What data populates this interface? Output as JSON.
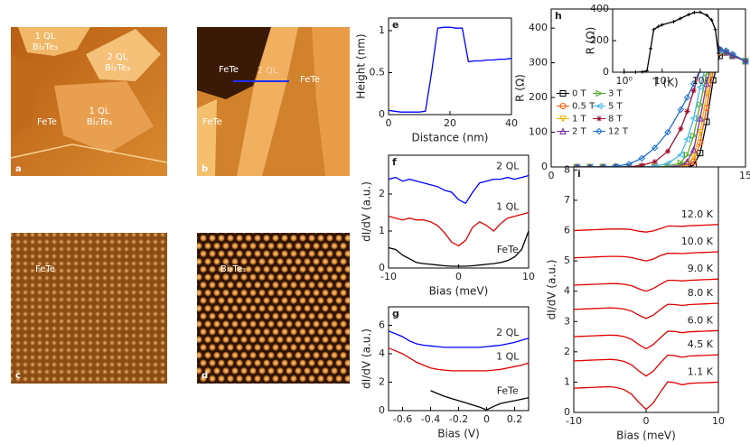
{
  "images": [
    {
      "label": "a",
      "texts": [
        "1 QL",
        "Bi₂Te₃",
        "2 QL",
        "Bi₂Te₃",
        "1 QL",
        "Bi₂Te₃",
        "FeTe"
      ]
    },
    {
      "label": "b",
      "texts": [
        "FeTe",
        "2 QL",
        "FeTe",
        "FeTe"
      ]
    },
    {
      "label": "c",
      "texts": [
        "FeTe"
      ]
    },
    {
      "label": "d",
      "texts": [
        "Bi₂Te₃"
      ]
    }
  ],
  "chart_data": [
    {
      "type": "line",
      "label": "e",
      "xlabel": "Distance (nm)",
      "ylabel": "Height (nm)",
      "x": [
        0,
        2,
        4,
        6,
        8,
        10,
        12,
        14,
        16,
        18,
        20,
        22,
        24,
        26,
        28,
        30,
        32,
        34,
        36,
        38,
        40
      ],
      "series": [
        {
          "color": "#0000ff",
          "values": [
            0.05,
            0.04,
            0.03,
            0.03,
            0.03,
            0.03,
            0.04,
            0.5,
            1.03,
            1.04,
            1.04,
            1.03,
            1.03,
            0.63,
            0.64,
            0.64,
            0.65,
            0.65,
            0.66,
            0.66,
            0.67
          ]
        }
      ],
      "xlim": [
        0,
        40
      ],
      "xticks": [
        0,
        20,
        40
      ],
      "ylim": [
        0,
        1.15
      ],
      "yticks": [
        0,
        0.5,
        1
      ]
    },
    {
      "type": "line",
      "label": "f",
      "xlabel": "Bias (meV)",
      "ylabel": "dI/dV (a.u.)",
      "legend": "inline",
      "x": [
        -10,
        -9,
        -8,
        -7,
        -6,
        -5,
        -4,
        -3,
        -2,
        -1,
        0,
        1,
        2,
        3,
        4,
        5,
        6,
        7,
        8,
        9,
        10
      ],
      "series": [
        {
          "name": "2 QL",
          "color": "#0000ff",
          "values": [
            2.4,
            2.45,
            2.35,
            2.4,
            2.35,
            2.3,
            2.25,
            2.2,
            2.1,
            2.05,
            1.85,
            1.75,
            2.05,
            2.3,
            2.35,
            2.4,
            2.4,
            2.45,
            2.4,
            2.45,
            2.5
          ]
        },
        {
          "name": "1 QL",
          "color": "#e00000",
          "values": [
            1.4,
            1.35,
            1.3,
            1.35,
            1.3,
            1.3,
            1.25,
            1.15,
            0.95,
            0.7,
            0.6,
            0.75,
            1.1,
            1.25,
            1.15,
            1.0,
            1.2,
            1.35,
            1.4,
            1.45,
            1.5
          ]
        },
        {
          "name": "FeTe",
          "color": "#000000",
          "values": [
            0.55,
            0.5,
            0.35,
            0.25,
            0.15,
            0.12,
            0.1,
            0.08,
            0.06,
            0.05,
            0.05,
            0.05,
            0.06,
            0.08,
            0.1,
            0.12,
            0.15,
            0.2,
            0.3,
            0.5,
            1.0
          ]
        }
      ],
      "xlim": [
        -10,
        10
      ],
      "xticks": [
        -10,
        0,
        10
      ],
      "ylim": [
        0,
        3.05
      ],
      "yticks": [
        0,
        1,
        2
      ]
    },
    {
      "type": "line",
      "label": "g",
      "xlabel": "Bias (V)",
      "ylabel": "dI/dV (a.u.)",
      "legend": "inline",
      "x": [
        -0.7,
        -0.65,
        -0.6,
        -0.55,
        -0.5,
        -0.45,
        -0.4,
        -0.35,
        -0.3,
        -0.25,
        -0.2,
        -0.15,
        -0.1,
        -0.05,
        0,
        0.05,
        0.1,
        0.15,
        0.2,
        0.25,
        0.3
      ],
      "series": [
        {
          "name": "2 QL",
          "color": "#0000ff",
          "values": [
            5.6,
            5.4,
            5.2,
            4.9,
            4.7,
            4.6,
            4.55,
            4.5,
            4.45,
            4.45,
            4.45,
            4.45,
            4.45,
            4.45,
            4.5,
            4.55,
            4.6,
            4.7,
            4.8,
            4.95,
            5.1
          ]
        },
        {
          "name": "1 QL",
          "color": "#e00000",
          "values": [
            4.4,
            4.2,
            4.0,
            3.7,
            3.4,
            3.2,
            3.0,
            2.9,
            2.85,
            2.8,
            2.8,
            2.8,
            2.8,
            2.8,
            2.8,
            2.85,
            2.9,
            3.0,
            3.1,
            3.2,
            3.35
          ]
        },
        {
          "name": "FeTe",
          "color": "#000000",
          "values": [
            null,
            null,
            null,
            null,
            null,
            null,
            1.4,
            1.2,
            1.0,
            0.85,
            0.7,
            0.55,
            0.4,
            0.25,
            0.05,
            0.3,
            0.5,
            0.6,
            0.7,
            0.8,
            0.9
          ]
        }
      ],
      "xlim": [
        -0.7,
        0.3
      ],
      "xticks": [
        -0.6,
        -0.4,
        -0.2,
        0,
        0.2
      ],
      "ylim": [
        0,
        7.3
      ],
      "yticks": [
        0,
        2,
        4,
        6
      ]
    },
    {
      "type": "line",
      "label": "h",
      "xlabel": "T (K)",
      "ylabel": "R (Ω)",
      "legend": "center left",
      "x": [
        2,
        3,
        4,
        5,
        6,
        7,
        8,
        9,
        10,
        10.5,
        11,
        11.5,
        12,
        12.5,
        13,
        13.5,
        14,
        15
      ],
      "series": [
        {
          "name": "0 T",
          "color": "#000000",
          "marker": "s",
          "values": [
            0,
            0,
            0,
            0,
            0,
            0,
            0,
            0,
            0,
            0,
            5,
            40,
            130,
            250,
            320,
            330,
            320,
            305
          ]
        },
        {
          "name": "0.5 T",
          "color": "#ff5500",
          "marker": "o",
          "values": [
            0,
            0,
            0,
            0,
            0,
            0,
            0,
            0,
            0,
            2,
            15,
            70,
            170,
            280,
            330,
            330,
            320,
            305
          ]
        },
        {
          "name": "1 T",
          "color": "#e8b000",
          "marker": "v",
          "values": [
            0,
            0,
            0,
            0,
            0,
            0,
            0,
            0,
            2,
            8,
            30,
            100,
            210,
            300,
            335,
            330,
            320,
            305
          ]
        },
        {
          "name": "2 T",
          "color": "#7b2fa0",
          "marker": "^",
          "values": [
            0,
            0,
            0,
            0,
            0,
            0,
            0,
            0,
            5,
            15,
            50,
            140,
            240,
            310,
            335,
            330,
            320,
            305
          ]
        },
        {
          "name": "3 T",
          "color": "#5aaa30",
          "marker": ">",
          "values": [
            0,
            0,
            0,
            0,
            0,
            0,
            0,
            2,
            12,
            35,
            90,
            180,
            270,
            320,
            335,
            330,
            320,
            305
          ]
        },
        {
          "name": "5 T",
          "color": "#40b8e8",
          "marker": "<",
          "values": [
            0,
            0,
            0,
            0,
            0,
            0,
            2,
            10,
            35,
            80,
            140,
            230,
            300,
            330,
            335,
            330,
            320,
            305
          ]
        },
        {
          "name": "8 T",
          "color": "#a01030",
          "marker": "*",
          "values": [
            0,
            0,
            0,
            0,
            0,
            5,
            15,
            45,
            110,
            160,
            220,
            280,
            320,
            340,
            340,
            330,
            320,
            305
          ]
        },
        {
          "name": "12 T",
          "color": "#1f6fd0",
          "marker": "D",
          "values": [
            0,
            0,
            0,
            2,
            8,
            25,
            55,
            100,
            165,
            200,
            240,
            280,
            315,
            335,
            340,
            335,
            325,
            305
          ]
        }
      ],
      "xlim": [
        0,
        15
      ],
      "xticks": [
        0,
        5,
        10,
        15
      ],
      "ylim": [
        0,
        455
      ],
      "yticks": [
        0,
        100,
        200,
        300,
        400
      ]
    },
    {
      "type": "line",
      "xlabel": "T (K)",
      "ylabel": "R (Ω)",
      "xscale": "log",
      "x": [
        1,
        2,
        3,
        4,
        5,
        6,
        8,
        10,
        20,
        30,
        50,
        70,
        100,
        150,
        200,
        250,
        300
      ],
      "series": [
        {
          "color": "#000000",
          "marker": "+",
          "values": [
            0,
            0,
            2,
            10,
            150,
            270,
            290,
            300,
            320,
            340,
            365,
            378,
            380,
            360,
            330,
            270,
            120
          ]
        }
      ],
      "xlim": [
        0.5,
        300
      ],
      "xticks": [
        {
          "value": 1,
          "label": "10⁰"
        },
        {
          "value": 10,
          "label": "10¹"
        },
        {
          "value": 100,
          "label": "10²"
        }
      ],
      "ylim": [
        0,
        400
      ],
      "yticks": [
        0,
        200,
        400
      ]
    },
    {
      "type": "line",
      "label": "i",
      "xlabel": "Bias (meV)",
      "ylabel": "dI/dV (a.u.)",
      "legend": "inline-right",
      "x": [
        -10,
        -9,
        -8,
        -7,
        -6,
        -5,
        -4,
        -3,
        -2,
        -1,
        0,
        1,
        2,
        3,
        4,
        5,
        6,
        7,
        8,
        9,
        10
      ],
      "series": [
        {
          "name": "12.0 K",
          "color": "#e00000",
          "values": [
            6.0,
            6.01,
            6.02,
            6.03,
            6.04,
            6.05,
            6.05,
            6.05,
            6.03,
            5.98,
            5.95,
            5.99,
            6.07,
            6.15,
            6.15,
            6.14,
            6.16,
            6.17,
            6.18,
            6.19,
            6.2
          ]
        },
        {
          "name": "10.0 K",
          "color": "#e00000",
          "values": [
            5.1,
            5.11,
            5.12,
            5.13,
            5.14,
            5.15,
            5.15,
            5.14,
            5.11,
            5.05,
            5.0,
            5.06,
            5.18,
            5.25,
            5.25,
            5.24,
            5.26,
            5.27,
            5.28,
            5.29,
            5.3
          ]
        },
        {
          "name": "9.0 K",
          "color": "#e00000",
          "values": [
            4.2,
            4.21,
            4.22,
            4.23,
            4.24,
            4.25,
            4.25,
            4.23,
            4.18,
            4.08,
            4.0,
            4.09,
            4.23,
            4.36,
            4.36,
            4.34,
            4.36,
            4.37,
            4.38,
            4.39,
            4.4
          ]
        },
        {
          "name": "8.0 K",
          "color": "#e00000",
          "values": [
            3.4,
            3.41,
            3.42,
            3.43,
            3.44,
            3.45,
            3.44,
            3.41,
            3.34,
            3.21,
            3.1,
            3.21,
            3.4,
            3.57,
            3.56,
            3.53,
            3.56,
            3.57,
            3.58,
            3.59,
            3.6
          ]
        },
        {
          "name": "6.0 K",
          "color": "#e00000",
          "values": [
            2.5,
            2.51,
            2.52,
            2.53,
            2.54,
            2.55,
            2.54,
            2.5,
            2.41,
            2.24,
            2.1,
            2.24,
            2.47,
            2.68,
            2.67,
            2.63,
            2.66,
            2.67,
            2.68,
            2.69,
            2.7
          ]
        },
        {
          "name": "4.5 K",
          "color": "#e00000",
          "values": [
            1.7,
            1.71,
            1.72,
            1.73,
            1.74,
            1.75,
            1.73,
            1.68,
            1.57,
            1.37,
            1.2,
            1.36,
            1.64,
            1.89,
            1.87,
            1.82,
            1.86,
            1.87,
            1.88,
            1.89,
            1.9
          ]
        },
        {
          "name": "1.1 K",
          "color": "#e00000",
          "values": [
            0.8,
            0.81,
            0.82,
            0.83,
            0.84,
            0.85,
            0.82,
            0.75,
            0.6,
            0.33,
            0.1,
            0.31,
            0.68,
            1.01,
            0.98,
            0.91,
            0.96,
            0.97,
            0.98,
            0.99,
            1.0
          ]
        }
      ],
      "xlim": [
        -10,
        10
      ],
      "xticks": [
        -10,
        0,
        10
      ],
      "ylim": [
        0,
        8.1
      ],
      "yticks": [
        0,
        1,
        2,
        3,
        4,
        5,
        6,
        7,
        8
      ]
    }
  ]
}
